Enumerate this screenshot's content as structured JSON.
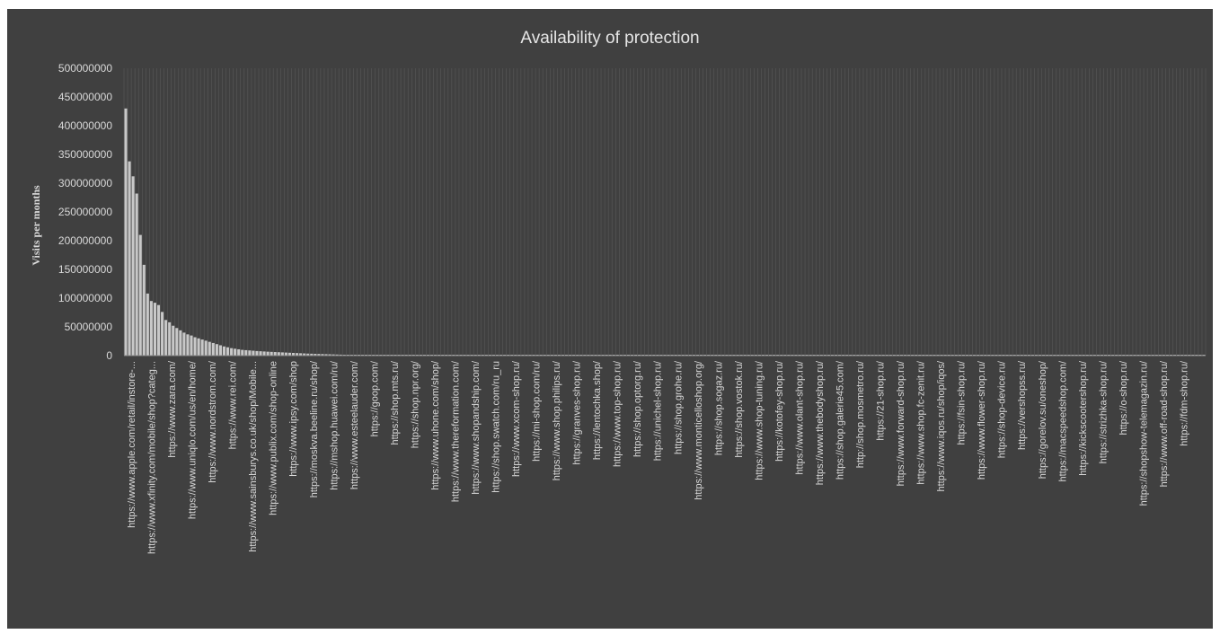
{
  "chart_data": {
    "type": "bar",
    "title": "Availability of protection",
    "xlabel": "",
    "ylabel": "Visits per months",
    "ylim": [
      0,
      500000000
    ],
    "yticks": [
      0,
      50000000,
      100000000,
      150000000,
      200000000,
      250000000,
      300000000,
      350000000,
      400000000,
      450000000,
      500000000
    ],
    "ytick_labels": [
      "0",
      "50000000",
      "100000000",
      "150000000",
      "200000000",
      "250000000",
      "300000000",
      "350000000",
      "400000000",
      "450000000",
      "500000000"
    ],
    "grid": "vertical",
    "bar_color": "#c8c8c8",
    "category_count": 297,
    "visible_labels": [
      "https://www.apple.com/retail/instore-...",
      "https://www.xfinity.com/mobile/shop?categ...",
      "https://www.zara.com/",
      "https://www.uniqlo.com/us/en/home/",
      "https://www.nordstrom.com/",
      "https://www.rei.com/",
      "https://www.sainsburys.co.uk/shop/Mobile...",
      "https://www.publix.com/shop-online",
      "https://www.ipsy.com/shop",
      "https://moskva.beeline.ru/shop/",
      "https://mshop.huawei.com/ru/",
      "https://www.esteelauder.com/",
      "https://goop.com/",
      "https://shop.mts.ru/",
      "https://shop.npr.org/",
      "https://www.uhone.com/shop/",
      "https://www.thereformation.com/",
      "https://www.shopandship.com/",
      "https://shop.swatch.com/ru_ru",
      "https://www.xcom-shop.ru/",
      "https://mi-shop.com/ru/",
      "https://www.shop.philips.ru/",
      "https://granves-shop.ru/",
      "https://lentochka.shop/",
      "https://www.top-shop.ru/",
      "https://shop.optorg.ru/",
      "https://unichel-shop.ru/",
      "https://shop.grohe.ru/",
      "https://www.monticelloshop.org/",
      "https://shop.sogaz.ru/",
      "https://shop.vostok.ru/",
      "https://www.shop-tuning.ru/",
      "https://kotofey-shop.ru/",
      "https://www.olant-shop.ru/",
      "https://www.thebodyshop.ru/",
      "https://shop.galerie45.com/",
      "http://shop.mosmetro.ru/",
      "https://21-shop.ru/",
      "https://www.forward-shop.ru/",
      "https://www.shop.fc-zenit.ru/",
      "https://www.iqos.ru/shop/iqos/",
      "https://fsin-shop.ru/",
      "https://www.flower-shop.ru/",
      "https://shop-device.ru/",
      "https://vershopss.ru/",
      "https://gorelov.su/oneshop/",
      "https://macspeedshop.com/",
      "https://kickscootershop.ru/",
      "https://strizhka-shop.ru/",
      "https://o-shop.ru/",
      "https://shopshow-telemagazin.ru/",
      "https://www.off-road-shop.ru/",
      "https://fdm-shop.ru/"
    ],
    "values_head": [
      430000000,
      338000000,
      312000000,
      282000000,
      210000000,
      158000000,
      108000000,
      95000000,
      92000000,
      88000000,
      76000000,
      62000000,
      58000000,
      52000000,
      48000000,
      44000000,
      40000000,
      37000000,
      35000000,
      32000000,
      30000000,
      28000000,
      26000000,
      24000000,
      22000000,
      20000000,
      18000000,
      16000000,
      14500000,
      13000000,
      12000000,
      11000000,
      10000000,
      9500000,
      9000000,
      8500000,
      8000000,
      7600000,
      7200000,
      6800000,
      6500000,
      6200000,
      5900000,
      5600000,
      5300000,
      5000000,
      4700000,
      4400000,
      4100000,
      3800000,
      3500000,
      3300000,
      3100000,
      2900000,
      2700000,
      2500000,
      2300000,
      2100000,
      1900000,
      1700000
    ],
    "values_tail_level": 1500000
  }
}
